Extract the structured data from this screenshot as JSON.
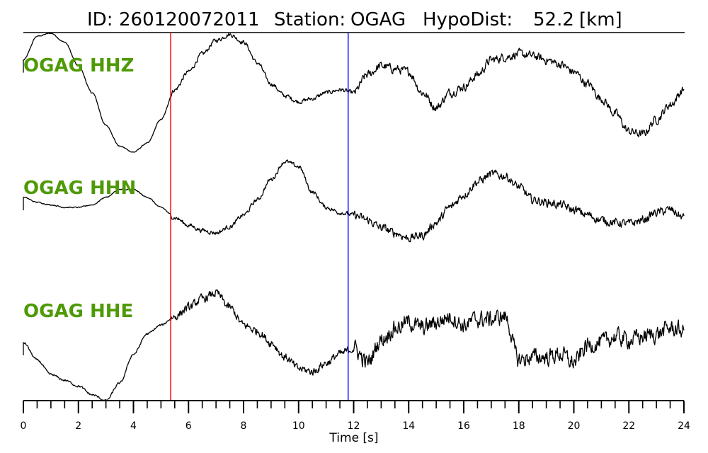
{
  "header": {
    "id_label": "ID:",
    "id_value": "260120072011",
    "station_label": "Station:",
    "station_value": "OGAG",
    "dist_label": "HypoDist:",
    "dist_value": "52.2",
    "dist_unit": "[km]"
  },
  "chart_data": {
    "type": "line",
    "xlabel": "Time [s]",
    "xlim": [
      0,
      24
    ],
    "x_ticks": [
      0,
      2,
      4,
      6,
      8,
      10,
      12,
      14,
      16,
      18,
      20,
      22,
      24
    ],
    "x_minor_step": 0.5,
    "markers": [
      {
        "name": "P pick",
        "time": 5.35,
        "color": "#ff0000"
      },
      {
        "name": "S pick",
        "time": 11.8,
        "color": "#0000ff"
      }
    ],
    "label_color": "#4e9a06",
    "trace_color": "#000000",
    "traces": [
      {
        "name": "OGAG HHZ",
        "times": [
          0,
          0.5,
          1,
          1.5,
          2,
          2.5,
          3,
          3.5,
          4,
          4.5,
          5,
          5.5,
          6,
          6.5,
          7,
          7.5,
          8,
          8.5,
          9,
          9.5,
          10,
          10.5,
          11,
          11.5,
          12,
          12.5,
          13,
          13.5,
          14,
          14.5,
          15,
          15.5,
          16,
          16.5,
          17,
          17.5,
          18,
          18.5,
          19,
          19.5,
          20,
          20.5,
          21,
          21.5,
          22,
          22.5,
          23,
          23.5,
          24
        ],
        "amps": [
          0.55,
          0.95,
          1.0,
          0.85,
          0.45,
          0.0,
          -0.55,
          -0.9,
          -1.0,
          -0.85,
          -0.45,
          0.05,
          0.35,
          0.65,
          0.88,
          0.98,
          0.85,
          0.5,
          0.15,
          -0.05,
          -0.15,
          -0.1,
          0.0,
          0.05,
          0.0,
          0.3,
          0.45,
          0.4,
          0.35,
          0.0,
          -0.25,
          0.0,
          0.1,
          0.3,
          0.55,
          0.6,
          0.65,
          0.62,
          0.55,
          0.48,
          0.35,
          0.15,
          -0.1,
          -0.35,
          -0.65,
          -0.7,
          -0.45,
          -0.2,
          0.05
        ],
        "noise": 0.03
      },
      {
        "name": "OGAG HHN",
        "times": [
          0,
          0.5,
          1,
          1.5,
          2,
          2.5,
          3,
          3.5,
          4,
          4.5,
          5,
          5.5,
          6,
          6.5,
          7,
          7.5,
          8,
          8.5,
          9,
          9.5,
          10,
          10.5,
          11,
          11.5,
          12,
          12.5,
          13,
          13.5,
          14,
          14.5,
          15,
          15.5,
          16,
          16.5,
          17,
          17.5,
          18,
          18.5,
          19,
          19.5,
          20,
          20.5,
          21,
          21.5,
          22,
          22.5,
          23,
          23.5,
          24
        ],
        "amps": [
          0.2,
          0.1,
          0.05,
          0.0,
          0.0,
          0.05,
          0.2,
          0.35,
          0.35,
          0.2,
          0.0,
          -0.2,
          -0.35,
          -0.45,
          -0.5,
          -0.38,
          -0.15,
          0.15,
          0.55,
          0.9,
          0.8,
          0.3,
          0.0,
          -0.1,
          -0.15,
          -0.25,
          -0.4,
          -0.5,
          -0.6,
          -0.55,
          -0.3,
          0.0,
          0.25,
          0.5,
          0.65,
          0.62,
          0.4,
          0.15,
          0.1,
          0.05,
          -0.05,
          -0.15,
          -0.25,
          -0.3,
          -0.32,
          -0.25,
          -0.1,
          -0.05,
          -0.2
        ],
        "noise": 0.035
      },
      {
        "name": "OGAG HHE",
        "times": [
          0,
          0.5,
          1,
          1.5,
          2,
          2.5,
          3,
          3.5,
          4,
          4.5,
          5,
          5.5,
          6,
          6.5,
          7,
          7.5,
          8,
          8.5,
          9,
          9.5,
          10,
          10.5,
          11,
          11.5,
          12,
          12.5,
          13,
          13.5,
          14,
          14.5,
          15,
          15.5,
          16,
          16.5,
          17,
          17.5,
          18,
          18.5,
          19,
          19.5,
          20,
          20.5,
          21,
          21.5,
          22,
          22.5,
          23,
          23.5,
          24
        ],
        "amps": [
          0.0,
          -0.3,
          -0.55,
          -0.65,
          -0.75,
          -0.9,
          -1.0,
          -0.7,
          -0.2,
          0.15,
          0.3,
          0.45,
          0.6,
          0.75,
          0.85,
          0.6,
          0.3,
          0.2,
          0.0,
          -0.25,
          -0.45,
          -0.5,
          -0.35,
          -0.2,
          -0.1,
          -0.35,
          0.05,
          0.25,
          0.35,
          0.25,
          0.35,
          0.45,
          0.3,
          0.4,
          0.4,
          0.45,
          -0.3,
          -0.25,
          -0.25,
          -0.2,
          -0.35,
          -0.05,
          0.0,
          0.1,
          0.05,
          0.1,
          0.15,
          0.25,
          0.2
        ],
        "noise": 0.06
      }
    ]
  }
}
